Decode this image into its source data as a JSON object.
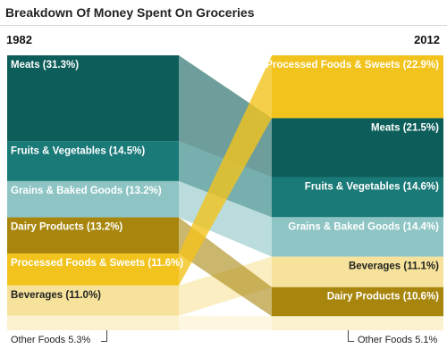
{
  "chart_data": {
    "type": "stacked-bar-slope",
    "title": "Breakdown Of Money Spent On Groceries",
    "years": [
      "1982",
      "2012"
    ],
    "categories": [
      {
        "key": "meats",
        "color": "#0d5e5a",
        "labels": [
          "Meats (31.3%)",
          "Meats (21.5%)"
        ],
        "values": [
          31.3,
          21.5
        ]
      },
      {
        "key": "fruits",
        "color": "#1a7a78",
        "labels": [
          "Fruits & Vegetables (14.5%)",
          "Fruits & Vegetables (14.6%)"
        ],
        "values": [
          14.5,
          14.6
        ]
      },
      {
        "key": "grains",
        "color": "#8ec4c4",
        "labels": [
          "Grains & Baked Goods (13.2%)",
          "Grains & Baked Goods (14.4%)"
        ],
        "values": [
          13.2,
          14.4
        ]
      },
      {
        "key": "dairy",
        "color": "#a8860d",
        "labels": [
          "Dairy Products (13.2%)",
          "Dairy Products (10.6%)"
        ],
        "values": [
          13.2,
          10.6
        ]
      },
      {
        "key": "processed",
        "color": "#f2c31c",
        "labels": [
          "Processed Foods & Sweets (11.6%)",
          "Processed Foods & Sweets (22.9%)"
        ],
        "values": [
          11.6,
          22.9
        ]
      },
      {
        "key": "beverages",
        "color": "#f6e29a",
        "labels": [
          "Beverages (11.0%)",
          "Beverages (11.1%)"
        ],
        "values": [
          11.0,
          11.1
        ]
      },
      {
        "key": "other",
        "color": "#fbf1cf",
        "labels": [
          "",
          ""
        ],
        "values": [
          5.3,
          5.1
        ]
      }
    ],
    "order_left": [
      "meats",
      "fruits",
      "grains",
      "dairy",
      "processed",
      "beverages",
      "other"
    ],
    "order_right": [
      "processed",
      "meats",
      "fruits",
      "grains",
      "beverages",
      "dairy",
      "other"
    ],
    "other_labels": [
      "Other Foods 5.3%",
      "Other Foods 5.1%"
    ]
  }
}
